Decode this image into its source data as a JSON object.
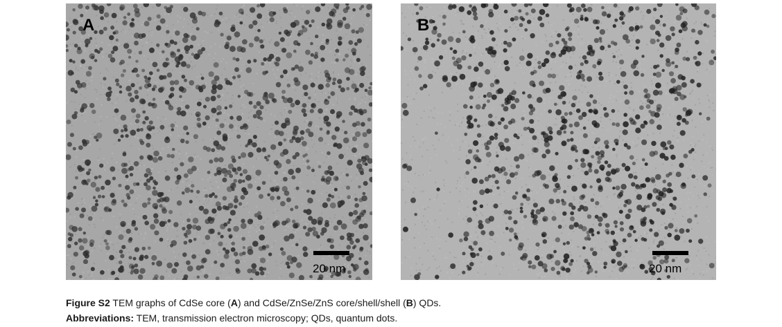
{
  "panels": [
    {
      "letter": "A",
      "scale_label": "20 nm",
      "background": "#a7a7a7",
      "dot_color": "#2f2f2f"
    },
    {
      "letter": "B",
      "scale_label": "20 nm",
      "background": "#b4b4b4",
      "dot_color": "#222222"
    }
  ],
  "caption": {
    "figure_label": "Figure S2",
    "text_1": " TEM graphs of CdSe core (",
    "bold_a": "A",
    "text_2": ") and CdSe/ZnSe/ZnS core/shell/shell (",
    "bold_b": "B",
    "text_3": ") QDs.",
    "abbr_label": "Abbreviations:",
    "abbr_text": " TEM, transmission electron microscopy; QDs, quantum dots."
  }
}
